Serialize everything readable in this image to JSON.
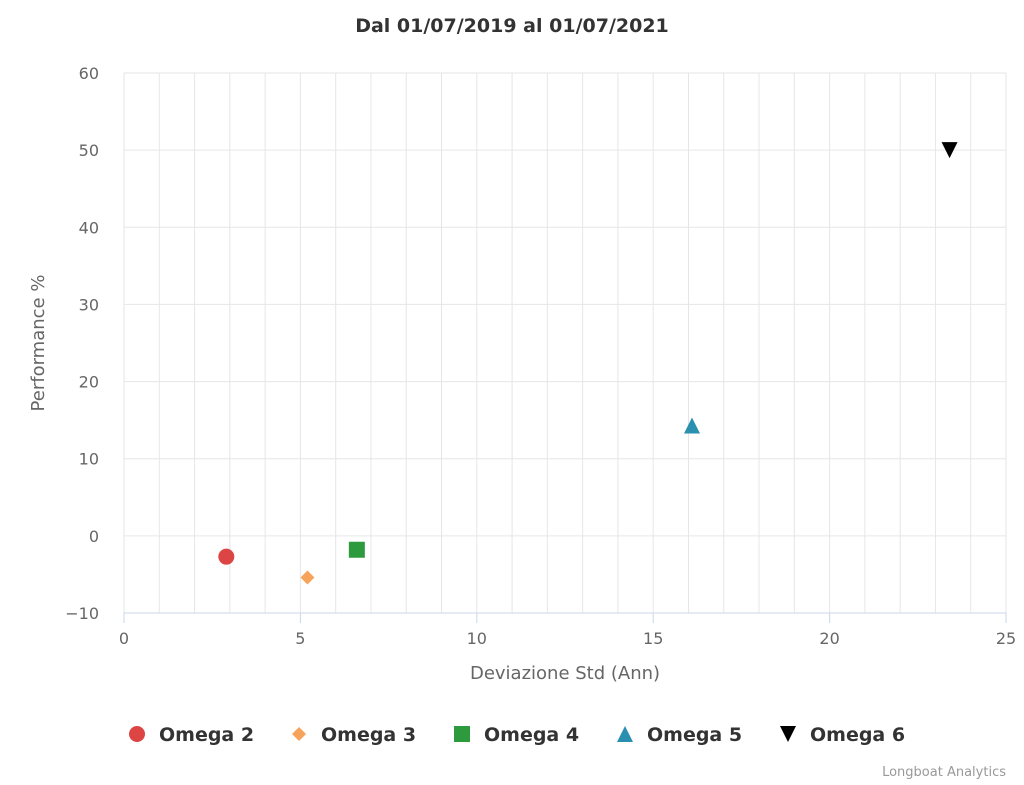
{
  "chart_data": {
    "type": "scatter",
    "title": "Dal 01/07/2019 al 01/07/2021",
    "xlabel": "Deviazione Std (Ann)",
    "ylabel": "Performance %",
    "xlim": [
      0,
      25
    ],
    "ylim": [
      -10,
      60
    ],
    "xticks": [
      0,
      5,
      10,
      15,
      20,
      25
    ],
    "yticks": [
      -10,
      0,
      10,
      20,
      30,
      40,
      50,
      60
    ],
    "grid": true,
    "legend_position": "bottom",
    "series": [
      {
        "name": "Omega 2",
        "marker": "circle",
        "color": "#dd4444",
        "points": [
          {
            "x": 2.9,
            "y": -2.7
          }
        ]
      },
      {
        "name": "Omega 3",
        "marker": "diamond",
        "color": "#f7a35c",
        "points": [
          {
            "x": 5.2,
            "y": -5.4
          }
        ]
      },
      {
        "name": "Omega 4",
        "marker": "square",
        "color": "#2e9a3e",
        "points": [
          {
            "x": 6.6,
            "y": -1.8
          }
        ]
      },
      {
        "name": "Omega 5",
        "marker": "triangle",
        "color": "#2b8fb0",
        "points": [
          {
            "x": 16.1,
            "y": 14.3
          }
        ]
      },
      {
        "name": "Omega 6",
        "marker": "triangle-down",
        "color": "#000000",
        "points": [
          {
            "x": 23.4,
            "y": 50.0
          }
        ]
      }
    ]
  },
  "credits": "Longboat Analytics"
}
